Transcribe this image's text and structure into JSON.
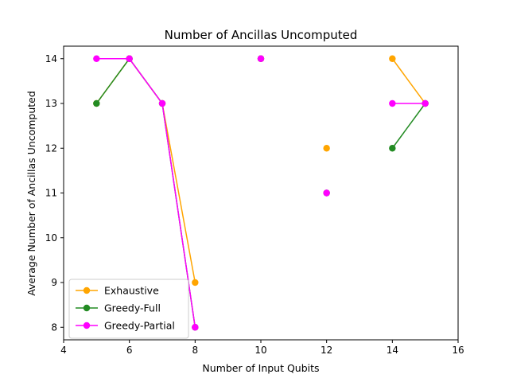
{
  "chart_data": {
    "type": "line",
    "title": "Number of Ancillas Uncomputed",
    "xlabel": "Number of Input Qubits",
    "ylabel": "Average Number of Ancillas Uncomputed",
    "xlim": [
      4,
      16
    ],
    "ylim": [
      7.72,
      14.28
    ],
    "xticks": [
      4,
      6,
      8,
      10,
      12,
      14,
      16
    ],
    "yticks": [
      8,
      9,
      10,
      11,
      12,
      13,
      14
    ],
    "grid": false,
    "legend_position": "lower-left",
    "series": [
      {
        "name": "Exhaustive",
        "color": "#ffa500",
        "x": [
          5,
          6,
          7,
          8,
          null,
          10,
          null,
          12,
          null,
          14,
          15
        ],
        "y": [
          13,
          14,
          13,
          9,
          null,
          14,
          null,
          12,
          null,
          14,
          13
        ]
      },
      {
        "name": "Greedy-Full",
        "color": "#228b22",
        "x": [
          5,
          6,
          7,
          8,
          null,
          10,
          null,
          12,
          null,
          14,
          15
        ],
        "y": [
          13,
          14,
          13,
          8,
          null,
          14,
          null,
          11,
          null,
          12,
          13
        ]
      },
      {
        "name": "Greedy-Partial",
        "color": "#ff00ff",
        "x": [
          5,
          6,
          7,
          8,
          null,
          10,
          null,
          12,
          null,
          14,
          15
        ],
        "y": [
          14,
          14,
          13,
          8,
          null,
          14,
          null,
          11,
          null,
          13,
          13
        ]
      }
    ]
  }
}
